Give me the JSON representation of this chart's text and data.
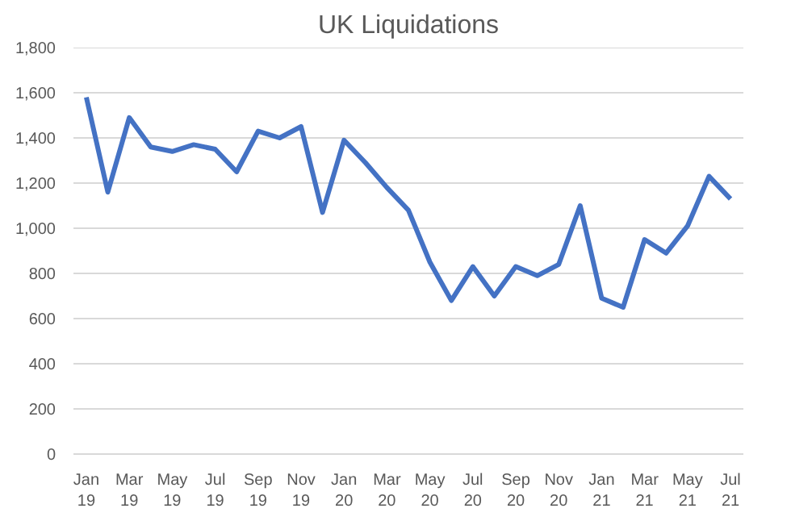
{
  "chart_data": {
    "type": "line",
    "title": "UK Liquidations",
    "categories": [
      "Jan\n19",
      null,
      "Mar\n19",
      null,
      "May\n19",
      null,
      "Jul\n19",
      null,
      "Sep\n19",
      null,
      "Nov\n19",
      null,
      "Jan\n20",
      null,
      "Mar\n20",
      null,
      "May\n20",
      null,
      "Jul\n20",
      null,
      "Sep\n20",
      null,
      "Nov\n20",
      null,
      "Jan\n21",
      null,
      "Mar\n21",
      null,
      "May\n21",
      null,
      "Jul\n21"
    ],
    "series": [
      {
        "color": "#4472c4",
        "values": [
          1580,
          1160,
          1490,
          1360,
          1340,
          1370,
          1350,
          1250,
          1430,
          1400,
          1450,
          1070,
          1390,
          1290,
          1180,
          1080,
          850,
          680,
          830,
          700,
          830,
          790,
          840,
          1100,
          690,
          650,
          950,
          890,
          1010,
          1230,
          1130
        ]
      }
    ],
    "ylim": [
      0,
      1800
    ],
    "yticks": [
      {
        "value": 0,
        "label": "0"
      },
      {
        "value": 200,
        "label": "200"
      },
      {
        "value": 400,
        "label": "400"
      },
      {
        "value": 600,
        "label": "600"
      },
      {
        "value": 800,
        "label": "800"
      },
      {
        "value": 1000,
        "label": "1,000"
      },
      {
        "value": 1200,
        "label": "1,200"
      },
      {
        "value": 1400,
        "label": "1,400"
      },
      {
        "value": 1600,
        "label": "1,600"
      },
      {
        "value": 1800,
        "label": "1,800"
      }
    ],
    "grid": "y",
    "marker": "none",
    "line_style": "solid"
  }
}
